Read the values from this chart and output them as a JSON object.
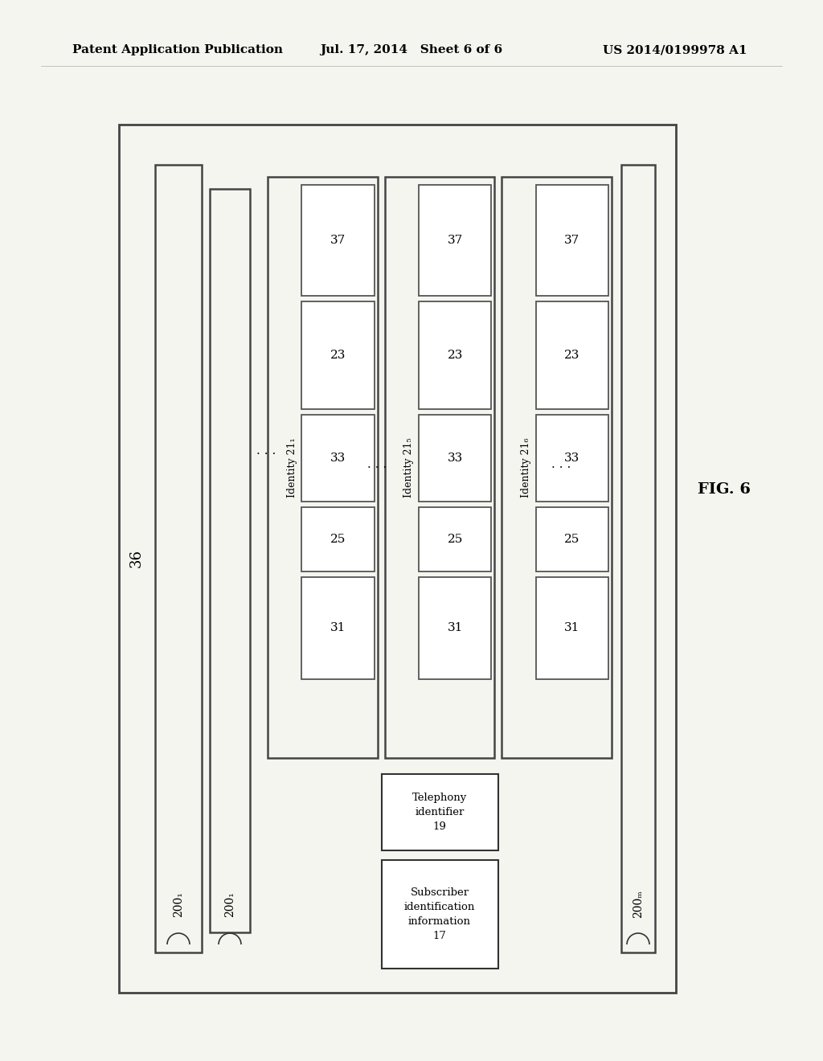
{
  "bg_color": "#f5f5f0",
  "header_left": "Patent Application Publication",
  "header_center": "Jul. 17, 2014   Sheet 6 of 6",
  "header_right": "US 2014/0199978 A1",
  "fig_label": "FIG. 6",
  "label_36": "36",
  "label_200_1": "200₁",
  "label_200_j": "200₁",
  "label_200_M": "200ₘ",
  "identity_labels": [
    "Identity 21₁",
    "Identity 21₅",
    "Identity 21₆"
  ],
  "box_numbers": [
    "37",
    "23",
    "33",
    "25",
    "31"
  ],
  "telephony_label": "Telephony\nidentifier\n19",
  "subscriber_label": "Subscriber\nidentification\ninformation\n17"
}
